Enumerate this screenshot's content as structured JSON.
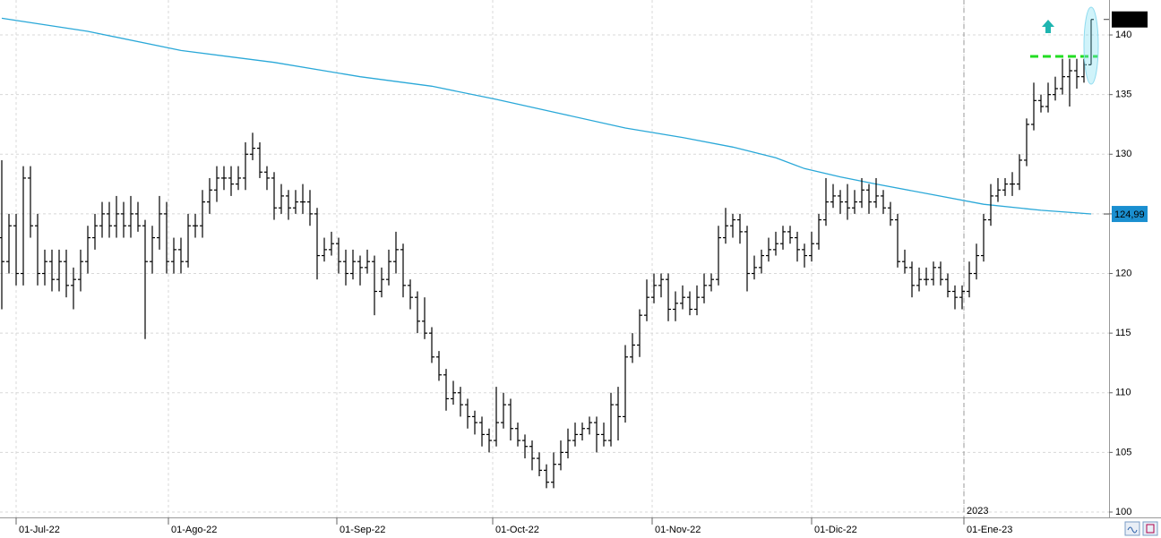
{
  "chart_data": {
    "type": "ohlc",
    "x": [
      0,
      1,
      2,
      3,
      4,
      5,
      6,
      7,
      8,
      9,
      10,
      11,
      12,
      13,
      14,
      15,
      16,
      17,
      18,
      19,
      20,
      21,
      22,
      23,
      24,
      25,
      26,
      27,
      28,
      29,
      30,
      31,
      32,
      33,
      34,
      35,
      36,
      37,
      38,
      39,
      40,
      41,
      42,
      43,
      44,
      45,
      46,
      47,
      48,
      49,
      50,
      51,
      52,
      53,
      54,
      55,
      56,
      57,
      58,
      59,
      60,
      61,
      62,
      63,
      64,
      65,
      66,
      67,
      68,
      69,
      70,
      71,
      72,
      73,
      74,
      75,
      76,
      77,
      78,
      79,
      80,
      81,
      82,
      83,
      84,
      85,
      86,
      87,
      88,
      89,
      90,
      91,
      92,
      93,
      94,
      95,
      96,
      97,
      98,
      99,
      100,
      101,
      102,
      103,
      104,
      105,
      106,
      107,
      108,
      109,
      110,
      111,
      112,
      113,
      114,
      115,
      116,
      117,
      118,
      119,
      120,
      121,
      122,
      123,
      124,
      125,
      126,
      127,
      128,
      129,
      130,
      131,
      132,
      133,
      134,
      135,
      136,
      137,
      138,
      139,
      140,
      141,
      142,
      143,
      144,
      145,
      146,
      147,
      148,
      149,
      150,
      151,
      152
    ],
    "open": [
      123,
      121,
      124,
      120,
      128,
      124,
      120,
      121,
      119.5,
      121,
      119,
      119.5,
      121,
      123,
      124,
      125,
      124,
      125,
      124,
      125,
      124,
      121,
      123,
      125,
      121,
      122,
      121,
      124,
      124,
      126,
      127,
      128,
      128,
      127.5,
      128,
      130,
      130.5,
      128.5,
      128,
      125.5,
      126.5,
      125.5,
      126,
      126,
      125,
      121.5,
      122,
      122.5,
      121,
      120,
      121,
      120.5,
      121,
      118.5,
      119.5,
      121,
      122,
      119,
      118,
      116,
      115,
      113,
      111.5,
      109.5,
      110,
      109,
      108,
      107.5,
      106.5,
      106,
      107.5,
      109,
      107,
      106,
      105.5,
      104.5,
      103.5,
      102.5,
      104,
      105,
      106,
      106.5,
      107,
      107.5,
      106.5,
      106,
      109,
      108,
      113,
      114,
      116.5,
      118,
      119,
      119.5,
      117,
      117.5,
      118,
      117,
      118,
      119,
      119.5,
      123,
      124,
      124.5,
      123.5,
      120,
      120.5,
      121.5,
      122,
      122.5,
      123.5,
      123,
      122,
      121.5,
      122.5,
      124.5,
      126,
      126.5,
      126,
      125.5,
      126,
      127,
      126,
      126.5,
      125.5,
      124.5,
      121,
      120.5,
      119,
      119.5,
      119.5,
      120.5,
      119.5,
      118.5,
      118,
      118.5,
      120,
      121.5,
      124.5,
      126.5,
      127,
      127.5,
      127.5,
      129.5,
      132.5,
      134.5,
      134,
      135,
      135.5,
      136.5,
      137,
      136.5,
      137.5
    ],
    "high": [
      129.5,
      125,
      125,
      129,
      129,
      125,
      122,
      122,
      122,
      122,
      120.5,
      122,
      124,
      125,
      126,
      126,
      126.5,
      126,
      126.5,
      126,
      124.5,
      124,
      126.5,
      126,
      123,
      123,
      125,
      125,
      127,
      128,
      129,
      129,
      129,
      129,
      131,
      131.8,
      131,
      129,
      128.5,
      127.5,
      127,
      127,
      127.5,
      127,
      125.5,
      123,
      123.5,
      123,
      122,
      122,
      121.5,
      122,
      121.5,
      120.5,
      122,
      123.5,
      122.5,
      119.5,
      118.5,
      118,
      115.5,
      113.5,
      112,
      111,
      110.5,
      109.5,
      108.5,
      108,
      107,
      110.5,
      110,
      109.5,
      107.5,
      106.5,
      106,
      105,
      104,
      105,
      106,
      107,
      107.5,
      107.5,
      108,
      108,
      107.5,
      110,
      110.5,
      114,
      115,
      117,
      119.5,
      120,
      120,
      120,
      118.5,
      119,
      118.5,
      119,
      120,
      120,
      124,
      125.5,
      125,
      125,
      124,
      121.5,
      122,
      123,
      123.5,
      124,
      124,
      123.5,
      122.5,
      123.5,
      125,
      128,
      127.5,
      127,
      127.5,
      127,
      128,
      127.5,
      128,
      127,
      126,
      125,
      122,
      121,
      120.5,
      120.5,
      121,
      121,
      120,
      119,
      119,
      121,
      122.5,
      125,
      127.5,
      128,
      128,
      128.5,
      130,
      133,
      136,
      135,
      136,
      136.5,
      138,
      138,
      138,
      138,
      141.3
    ],
    "low": [
      117,
      120,
      119,
      119,
      123,
      119,
      119,
      118.5,
      118.5,
      118,
      117,
      118.5,
      120,
      122,
      123,
      123,
      123,
      123,
      123,
      123.5,
      114.5,
      120,
      122,
      120,
      120,
      120,
      120.5,
      123,
      123,
      125,
      126,
      127,
      126.5,
      127,
      127,
      129.5,
      128,
      127,
      124.5,
      125,
      124.5,
      125,
      125,
      124,
      119.5,
      121,
      121.5,
      120,
      119,
      119.5,
      119,
      120,
      116.5,
      118,
      119,
      120,
      118,
      117,
      115,
      114.5,
      112.5,
      111,
      108.5,
      109,
      108,
      107,
      106.5,
      105.5,
      105,
      105.5,
      107,
      106,
      105.5,
      104.5,
      103.5,
      103,
      102,
      102,
      103.5,
      104.5,
      105.5,
      106,
      106.5,
      105,
      105.5,
      105.5,
      106,
      107.5,
      112.5,
      113,
      116,
      117.5,
      118,
      116,
      116,
      117,
      116.5,
      116.5,
      117.5,
      118.5,
      119,
      122.5,
      123,
      122.5,
      118.5,
      119.5,
      120,
      121,
      121.5,
      122,
      122.5,
      121,
      120.5,
      121,
      122,
      124,
      125.5,
      125,
      124.5,
      125,
      125.5,
      125,
      125.5,
      125,
      124,
      120.5,
      120,
      118,
      118.5,
      119,
      119,
      119,
      118,
      117,
      117,
      118,
      119.5,
      121,
      124,
      126,
      126.5,
      126.5,
      127,
      129,
      132,
      133.5,
      133.5,
      134.5,
      135,
      134,
      135.5,
      136,
      137.5
    ],
    "close": [
      121,
      124,
      120,
      128,
      124,
      120,
      121,
      119.5,
      121,
      119,
      119.5,
      121,
      123,
      124,
      125,
      124,
      125,
      124,
      125,
      124,
      121,
      123,
      125,
      121,
      122,
      121,
      124,
      124,
      126,
      127,
      128,
      128,
      127.5,
      128,
      130,
      130.5,
      128.5,
      128,
      125.5,
      126.5,
      125.5,
      126,
      126,
      125,
      121.5,
      122,
      122.5,
      121,
      120,
      121,
      120.5,
      121,
      118.5,
      119.5,
      121,
      122,
      119,
      118,
      116,
      115,
      113,
      111.5,
      109.5,
      110,
      109,
      108,
      107.5,
      106.5,
      106,
      107.5,
      109,
      107,
      106,
      105.5,
      104.5,
      103.5,
      102.5,
      104,
      105,
      106,
      106.5,
      107,
      107.5,
      106.5,
      106,
      109,
      108,
      113,
      114,
      116.5,
      118,
      119,
      119.5,
      117,
      117.5,
      118,
      117,
      118,
      119,
      119.5,
      123,
      124,
      124.5,
      123.5,
      120,
      120.5,
      121.5,
      122,
      122.5,
      123.5,
      123,
      122,
      121.5,
      122.5,
      124.5,
      126,
      126.5,
      126,
      125.5,
      126,
      127,
      126,
      126.5,
      125.5,
      124.5,
      121,
      120.5,
      119,
      119.5,
      119.5,
      120.5,
      119.5,
      118.5,
      118,
      118.5,
      120,
      121.5,
      124.5,
      126.5,
      127,
      127.5,
      127.5,
      129.5,
      132.5,
      134.5,
      134,
      135,
      135.5,
      136.5,
      137,
      136.5,
      137.5,
      141.3
    ],
    "bar_color": "#000000",
    "moving_average": {
      "color": "#2aa8d8",
      "x": [
        0,
        12,
        25,
        38,
        50,
        60,
        69,
        78,
        87,
        95,
        102,
        108,
        112,
        117,
        122,
        130,
        137,
        145,
        152
      ],
      "values": [
        141.4,
        140.3,
        138.7,
        137.7,
        136.5,
        135.7,
        134.6,
        133.4,
        132.2,
        131.4,
        130.6,
        129.7,
        128.8,
        128.1,
        127.5,
        126.6,
        125.8,
        125.3,
        124.99
      ]
    },
    "last_price": {
      "value": 141.3,
      "label": "141,3"
    },
    "ma_last": {
      "value": 124.99,
      "label": "124,99"
    },
    "resistance": {
      "value": 138.2,
      "color": "#22dd22",
      "x": [
        143.5,
        153
      ]
    },
    "year_label": "2023",
    "year_line_x": 134.25,
    "xlim": [
      -0.25,
      154.5
    ],
    "xticks": [
      {
        "value": 2,
        "label": "01-Jul-22"
      },
      {
        "value": 23.25,
        "label": "01-Ago-22"
      },
      {
        "value": 46.75,
        "label": "01-Sep-22"
      },
      {
        "value": 68.5,
        "label": "01-Oct-22"
      },
      {
        "value": 90.75,
        "label": "01-Nov-22"
      },
      {
        "value": 113,
        "label": "01-Dic-22"
      },
      {
        "value": 134.25,
        "label": "01-Ene-23"
      }
    ],
    "ylim": [
      99.55,
      142.93
    ],
    "yticks": [
      100,
      105,
      110,
      115,
      120,
      125,
      130,
      135,
      140
    ],
    "grid": true
  }
}
